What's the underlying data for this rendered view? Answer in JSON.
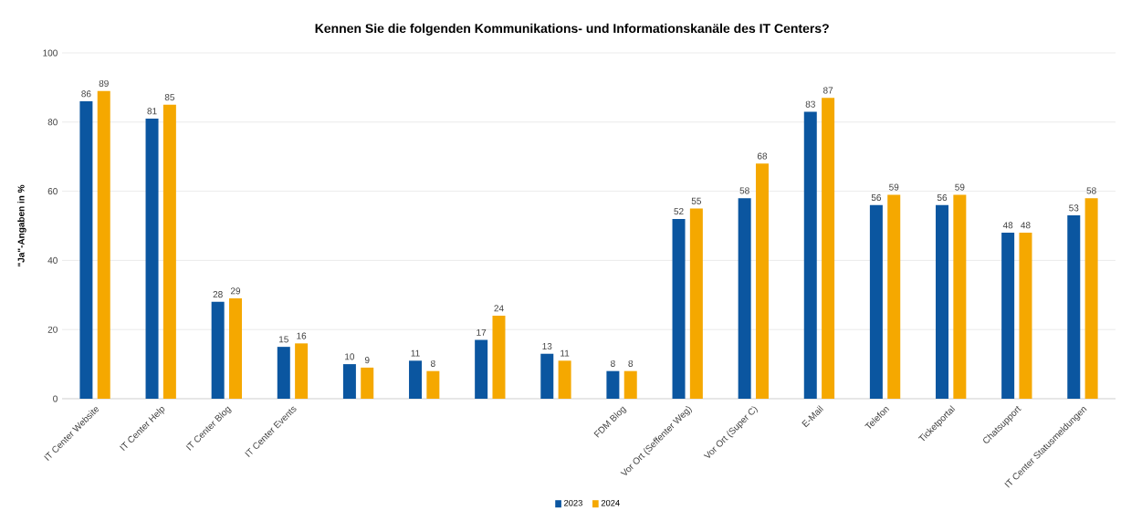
{
  "chart_data": {
    "type": "bar",
    "title": "Kennen Sie die folgenden Kommunikations- und Informationskanäle des IT Centers?",
    "ylabel": "\"Ja\"-Angaben in %",
    "categories": [
      "IT Center Website",
      "IT Center Help",
      "IT Center Blog",
      "IT Center Events",
      null,
      null,
      null,
      null,
      "FDM Blog",
      "Vor Ort (Seffenter Weg)",
      "Vor Ort (Super C)",
      "E-Mail",
      "Telefon",
      "Ticketportal",
      "Chatsupport",
      "IT Center Statusmeldungen"
    ],
    "series": [
      {
        "name": "2023",
        "color": "#0b56a0",
        "values": [
          86,
          81,
          28,
          15,
          10,
          11,
          17,
          13,
          8,
          52,
          58,
          83,
          56,
          56,
          48,
          53
        ]
      },
      {
        "name": "2024",
        "color": "#f5a800",
        "values": [
          89,
          85,
          29,
          16,
          9,
          8,
          24,
          11,
          8,
          55,
          68,
          87,
          59,
          59,
          48,
          58
        ]
      }
    ],
    "ylim": [
      0,
      100
    ],
    "yticks": [
      0,
      20,
      40,
      60,
      80,
      100
    ],
    "grid": "y",
    "legend": "bottom",
    "data_labels": true
  }
}
